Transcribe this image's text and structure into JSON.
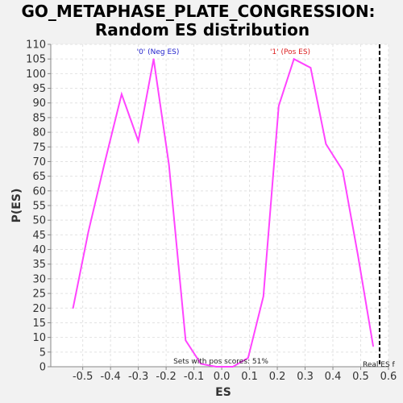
{
  "chart_data": {
    "type": "line",
    "title": "GO_METAPHASE_PLATE_CONGRESSION:",
    "subtitle": "Random ES distribution",
    "xlabel": "ES",
    "ylabel": "P(ES)",
    "xlim": [
      -0.615,
      0.6
    ],
    "ylim": [
      0,
      110
    ],
    "xticks": [
      "-0.5",
      "-0.4",
      "-0.3",
      "-0.2",
      "-0.1",
      "0.0",
      "0.1",
      "0.2",
      "0.3",
      "0.4",
      "0.5",
      "0.6"
    ],
    "xtick_values": [
      -0.5,
      -0.4,
      -0.3,
      -0.2,
      -0.1,
      0.0,
      0.1,
      0.2,
      0.3,
      0.4,
      0.5,
      0.6
    ],
    "yticks": [
      0,
      5,
      10,
      15,
      20,
      25,
      30,
      35,
      40,
      45,
      50,
      55,
      60,
      65,
      70,
      75,
      80,
      85,
      90,
      95,
      100,
      105,
      110
    ],
    "grid": true,
    "series": [
      {
        "color": "#ff44ff",
        "x": [
          -0.535,
          -0.48,
          -0.42,
          -0.36,
          -0.3,
          -0.245,
          -0.19,
          -0.13,
          -0.075,
          -0.02,
          0.04,
          0.095,
          0.15,
          0.205,
          0.26,
          0.32,
          0.375,
          0.435,
          0.49,
          0.545
        ],
        "y": [
          20,
          46,
          70,
          93,
          77,
          105,
          69,
          9,
          1,
          0,
          0,
          3,
          24,
          89,
          105,
          102,
          76,
          67,
          38,
          7
        ]
      }
    ],
    "annotations": {
      "neg_label": "'0' (Neg ES)",
      "neg_color": "#2222cc",
      "pos_label": "'1' (Pos ES)",
      "pos_color": "#dd2222",
      "pos_scores": "Sets with pos scores: 51%",
      "real_es_label": "Real ES f",
      "real_es_x": 0.568
    }
  }
}
